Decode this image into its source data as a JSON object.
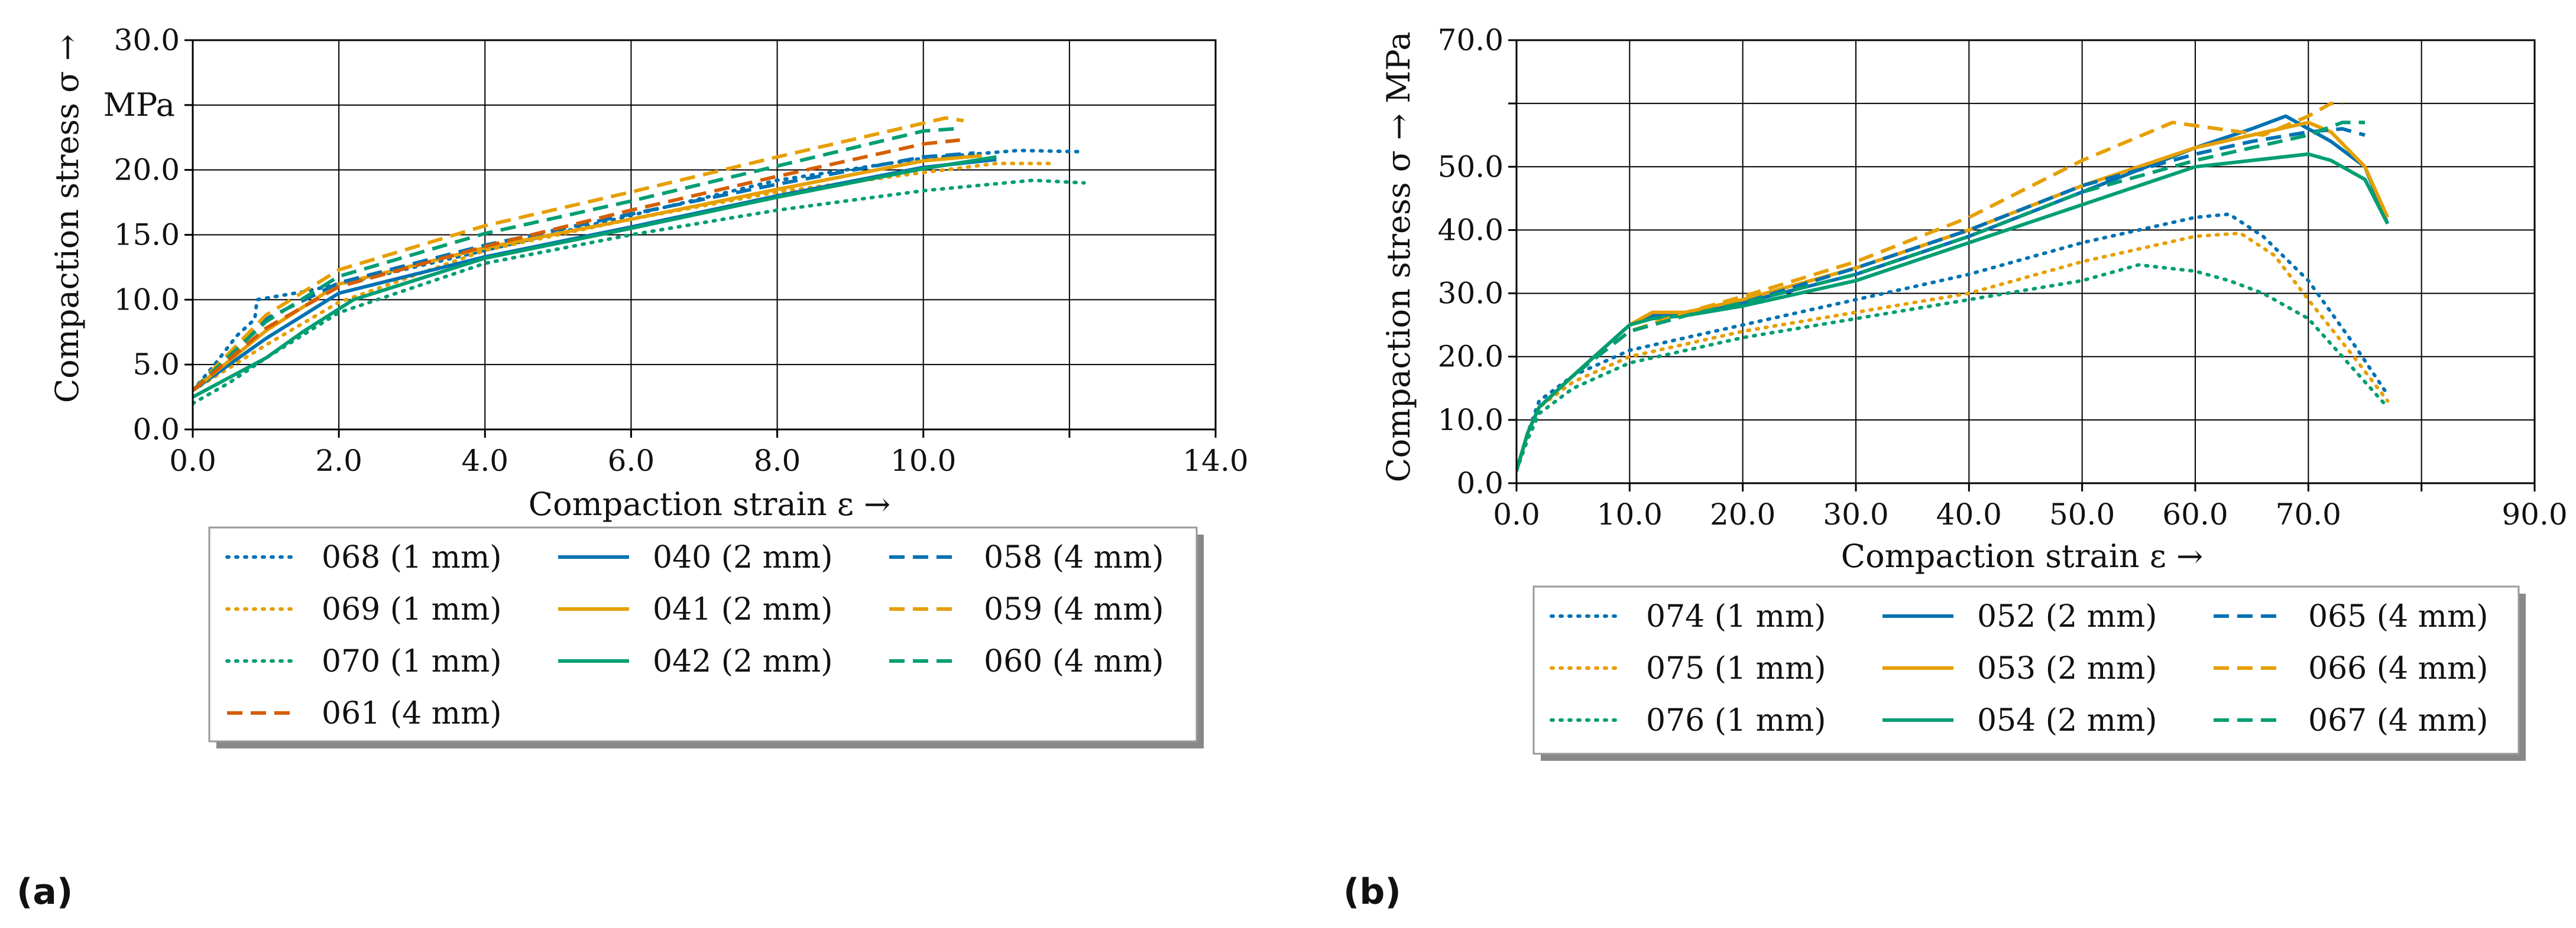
{
  "figure": {
    "panel_labels": [
      "(a)",
      "(b)"
    ]
  },
  "colors": {
    "blue": "#0072b2",
    "orange": "#e69f00",
    "green": "#009e73",
    "red": "#d55e00"
  },
  "chart_data": [
    {
      "type": "line",
      "xlabel": "Compaction strain ε →",
      "ylabel_line1": "Compaction stress σ →",
      "ylabel_line2": "MPa",
      "xlim": [
        0,
        14
      ],
      "ylim": [
        0,
        30
      ],
      "xticks": [
        0,
        2,
        4,
        6,
        8,
        10,
        12,
        14
      ],
      "xtick_labels": [
        "0.0",
        "2.0",
        "4.0",
        "6.0",
        "8.0",
        "10.0",
        "",
        "14.0"
      ],
      "yticks": [
        0,
        5,
        10,
        15,
        20,
        25,
        30
      ],
      "ytick_labels": [
        "0.0",
        "5.0",
        "10.0",
        "15.0",
        "20.0",
        "",
        "30.0"
      ],
      "legend_order": [
        0,
        3,
        6,
        1,
        4,
        7,
        2,
        5,
        8,
        9
      ],
      "series": [
        {
          "name": "068 (1 mm)",
          "color": "#0072b2",
          "style": "dotted",
          "x": [
            0.0,
            0.3,
            0.6,
            0.85,
            0.88,
            1.5,
            2.5,
            4.0,
            6.0,
            8.0,
            10.0,
            11.3,
            12.2
          ],
          "y": [
            3.0,
            5.0,
            7.2,
            8.5,
            10.0,
            10.6,
            11.8,
            13.8,
            16.5,
            19.2,
            20.9,
            21.5,
            21.4
          ]
        },
        {
          "name": "069 (1 mm)",
          "color": "#e69f00",
          "style": "dotted",
          "x": [
            0.0,
            1.0,
            2.0,
            4.0,
            6.0,
            8.0,
            10.0,
            11.0,
            11.8
          ],
          "y": [
            3.0,
            6.5,
            9.8,
            13.8,
            16.2,
            18.3,
            19.8,
            20.5,
            20.5
          ]
        },
        {
          "name": "070 (1 mm)",
          "color": "#009e73",
          "style": "dotted",
          "x": [
            0.0,
            0.5,
            1.0,
            2.0,
            4.0,
            6.0,
            8.0,
            10.0,
            11.5,
            12.2
          ],
          "y": [
            2.0,
            3.6,
            5.5,
            9.0,
            12.8,
            15.0,
            16.9,
            18.4,
            19.2,
            19.0
          ]
        },
        {
          "name": "040 (2 mm)",
          "color": "#0072b2",
          "style": "solid",
          "x": [
            0.0,
            1.0,
            2.0,
            4.0,
            6.0,
            8.0,
            10.0,
            11.0
          ],
          "y": [
            3.0,
            7.0,
            10.5,
            13.3,
            15.6,
            18.0,
            20.2,
            20.8
          ]
        },
        {
          "name": "041 (2 mm)",
          "color": "#e69f00",
          "style": "solid",
          "x": [
            0.0,
            1.0,
            2.0,
            4.0,
            6.0,
            8.0,
            10.0,
            10.8
          ],
          "y": [
            3.0,
            7.6,
            11.2,
            14.0,
            16.2,
            18.5,
            20.7,
            21.1
          ]
        },
        {
          "name": "042 (2 mm)",
          "color": "#009e73",
          "style": "solid",
          "x": [
            0.0,
            1.0,
            1.5,
            2.2,
            4.0,
            6.0,
            8.0,
            10.0,
            11.0
          ],
          "y": [
            2.5,
            5.5,
            7.5,
            10.0,
            13.2,
            15.5,
            17.9,
            20.1,
            21.0
          ]
        },
        {
          "name": "058 (4 mm)",
          "color": "#0072b2",
          "style": "dashed",
          "x": [
            0.0,
            1.0,
            2.0,
            4.0,
            6.0,
            8.0,
            10.0,
            10.7
          ],
          "y": [
            3.0,
            8.5,
            11.3,
            14.2,
            16.6,
            18.9,
            21.0,
            21.3
          ]
        },
        {
          "name": "059 (4 mm)",
          "color": "#e69f00",
          "style": "dashed",
          "x": [
            0.0,
            1.0,
            2.0,
            4.0,
            6.0,
            8.0,
            10.0,
            10.3,
            10.55
          ],
          "y": [
            3.0,
            8.8,
            12.3,
            15.7,
            18.3,
            21.0,
            23.6,
            24.0,
            23.8
          ]
        },
        {
          "name": "060 (4 mm)",
          "color": "#009e73",
          "style": "dashed",
          "x": [
            0.0,
            1.0,
            2.0,
            4.0,
            6.0,
            8.0,
            10.0,
            10.5
          ],
          "y": [
            3.0,
            8.3,
            11.8,
            15.1,
            17.6,
            20.3,
            23.0,
            23.2
          ]
        },
        {
          "name": "061 (4 mm)",
          "color": "#d55e00",
          "style": "dashed",
          "x": [
            0.0,
            1.0,
            2.0,
            4.0,
            6.0,
            8.0,
            10.0,
            10.5
          ],
          "y": [
            3.0,
            7.8,
            11.0,
            14.1,
            16.9,
            19.5,
            22.0,
            22.3
          ]
        }
      ]
    },
    {
      "type": "line",
      "xlabel": "Compaction strain ε →",
      "ylabel_line1": "Compaction stress σ → MPa",
      "ylabel_line2": "",
      "xlim": [
        0,
        90
      ],
      "ylim": [
        0,
        70
      ],
      "xticks": [
        0,
        10,
        20,
        30,
        40,
        50,
        60,
        70,
        80,
        90
      ],
      "xtick_labels": [
        "0.0",
        "10.0",
        "20.0",
        "30.0",
        "40.0",
        "50.0",
        "60.0",
        "70.0",
        "",
        "90.0"
      ],
      "yticks": [
        0,
        10,
        20,
        30,
        40,
        50,
        60,
        70
      ],
      "ytick_labels": [
        "0.0",
        "10.0",
        "20.0",
        "30.0",
        "40.0",
        "50.0",
        "",
        "70.0"
      ],
      "legend_order": [
        0,
        3,
        6,
        1,
        4,
        7,
        2,
        5,
        8
      ],
      "series": [
        {
          "name": "074 (1 mm)",
          "color": "#0072b2",
          "style": "dotted",
          "x": [
            0,
            1,
            2,
            5,
            10,
            20,
            30,
            40,
            50,
            60,
            63,
            66,
            70,
            74,
            77
          ],
          "y": [
            2,
            8,
            13,
            17,
            21,
            25,
            29,
            33,
            38,
            42,
            42.5,
            39,
            32,
            22,
            14
          ]
        },
        {
          "name": "075 (1 mm)",
          "color": "#e69f00",
          "style": "dotted",
          "x": [
            0,
            1,
            2,
            5,
            10,
            20,
            30,
            40,
            50,
            60,
            64,
            67,
            70,
            74,
            77
          ],
          "y": [
            2,
            7,
            12,
            16,
            20,
            24,
            27,
            30,
            35,
            39,
            39.5,
            36,
            29,
            20,
            13
          ]
        },
        {
          "name": "076 (1 mm)",
          "color": "#009e73",
          "style": "dotted",
          "x": [
            0,
            1,
            2,
            5,
            10,
            20,
            30,
            40,
            50,
            55,
            60,
            63,
            66,
            70,
            74,
            77
          ],
          "y": [
            2,
            7,
            11,
            15,
            19,
            23,
            26,
            29,
            32,
            34.5,
            33.5,
            32,
            30,
            26,
            18,
            12
          ]
        },
        {
          "name": "052 (2 mm)",
          "color": "#0072b2",
          "style": "solid",
          "x": [
            0,
            1,
            2,
            5,
            10,
            12,
            15,
            20,
            30,
            40,
            50,
            60,
            65,
            68,
            70,
            72,
            75,
            77
          ],
          "y": [
            2,
            8,
            12,
            17,
            25,
            26.5,
            27,
            28.5,
            33,
            39,
            46,
            53,
            56,
            58,
            56,
            54,
            50,
            41
          ]
        },
        {
          "name": "053 (2 mm)",
          "color": "#e69f00",
          "style": "solid",
          "x": [
            0,
            1,
            2,
            5,
            10,
            12,
            15,
            20,
            30,
            40,
            50,
            60,
            65,
            70,
            72,
            75,
            77
          ],
          "y": [
            2,
            8,
            12,
            17,
            25,
            27,
            27,
            29,
            34,
            40,
            47,
            53,
            55,
            57,
            55.5,
            50,
            42
          ]
        },
        {
          "name": "054 (2 mm)",
          "color": "#009e73",
          "style": "solid",
          "x": [
            0,
            1,
            2,
            5,
            10,
            12,
            15,
            20,
            30,
            40,
            50,
            60,
            65,
            70,
            72,
            75,
            77
          ],
          "y": [
            2,
            8,
            12,
            17,
            25,
            26,
            26.5,
            28,
            32,
            38,
            44,
            50,
            51,
            52,
            51,
            48,
            41
          ]
        },
        {
          "name": "065 (4 mm)",
          "color": "#0072b2",
          "style": "dashed",
          "x": [
            0,
            1,
            2,
            5,
            10,
            15,
            20,
            30,
            40,
            50,
            60,
            65,
            70,
            73,
            75
          ],
          "y": [
            2,
            8,
            12,
            17,
            24,
            26.5,
            28.5,
            34,
            40,
            47,
            52,
            54,
            55.5,
            56,
            55
          ]
        },
        {
          "name": "066 (4 mm)",
          "color": "#e69f00",
          "style": "dashed",
          "x": [
            0,
            1,
            2,
            5,
            10,
            15,
            20,
            30,
            40,
            50,
            58,
            62,
            66,
            70,
            72,
            73
          ],
          "y": [
            2,
            8,
            12,
            17,
            24,
            27,
            29.5,
            35,
            42,
            51,
            57,
            56,
            55,
            58,
            60,
            60
          ]
        },
        {
          "name": "067 (4 mm)",
          "color": "#009e73",
          "style": "dashed",
          "x": [
            0,
            1,
            2,
            5,
            10,
            15,
            20,
            30,
            40,
            50,
            60,
            65,
            70,
            73,
            75
          ],
          "y": [
            2,
            8,
            12,
            17,
            24,
            26.5,
            28.5,
            33,
            39,
            46,
            51,
            53,
            55,
            57,
            57
          ]
        }
      ]
    }
  ]
}
